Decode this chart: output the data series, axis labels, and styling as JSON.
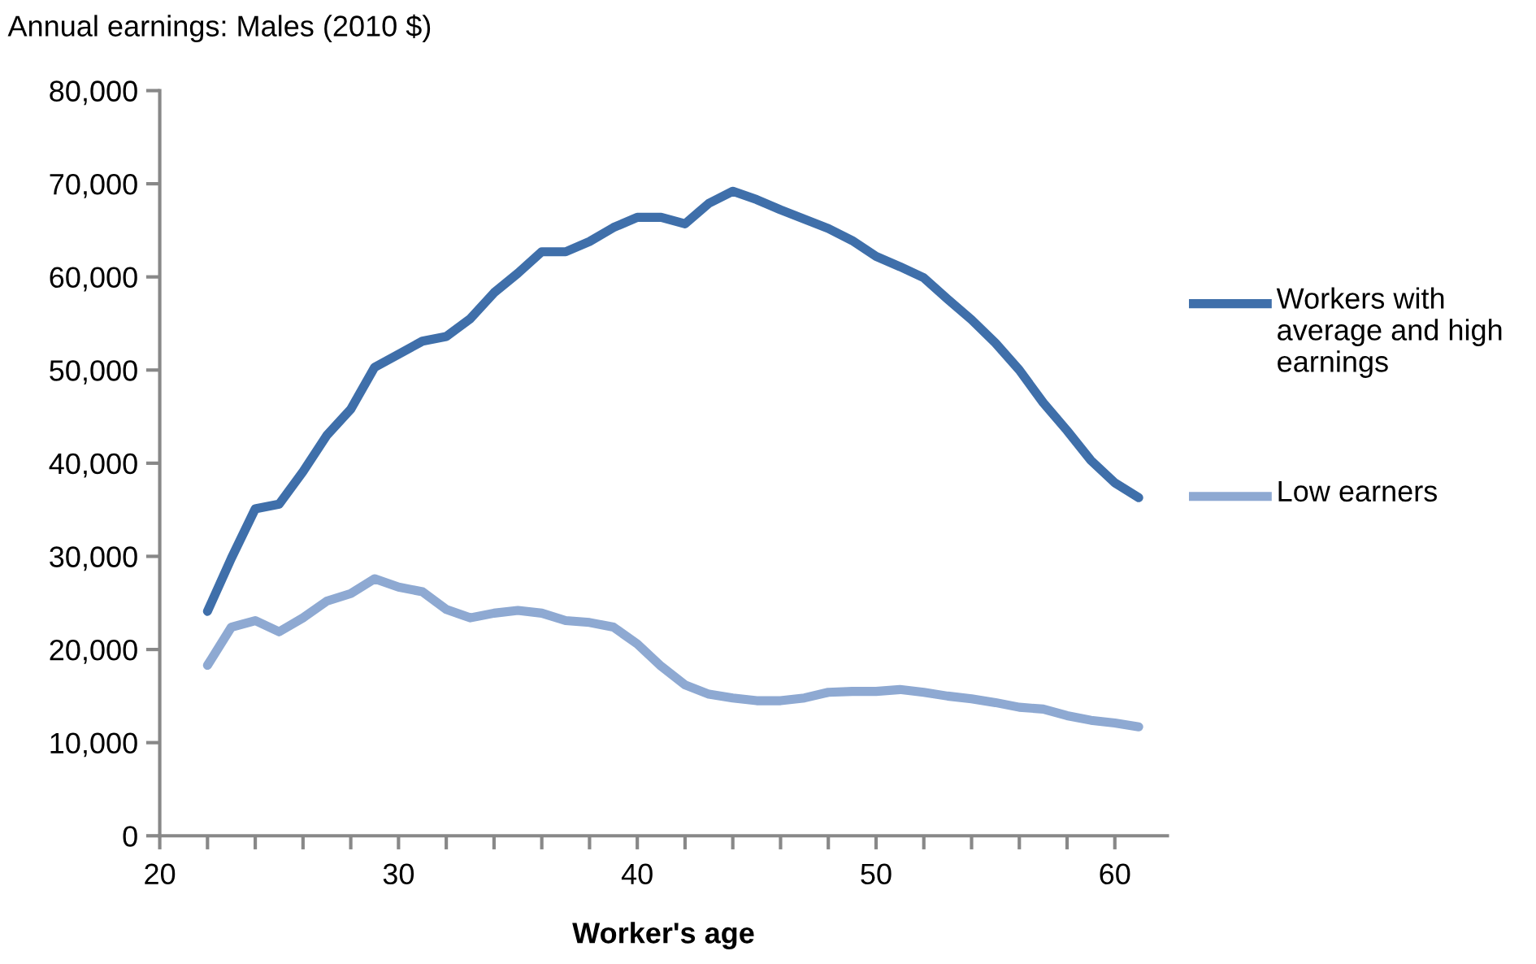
{
  "chart_data": {
    "type": "line",
    "title": "Annual earnings: Males (2010 $)",
    "xlabel": "Worker's age",
    "x": [
      22,
      23,
      24,
      25,
      26,
      27,
      28,
      29,
      30,
      31,
      32,
      33,
      34,
      35,
      36,
      37,
      38,
      39,
      40,
      41,
      42,
      43,
      44,
      45,
      46,
      47,
      48,
      49,
      50,
      51,
      52,
      53,
      54,
      55,
      56,
      57,
      58,
      59,
      60,
      61
    ],
    "series": [
      {
        "name": "Workers with average and high earnings",
        "color": "#3f6faa",
        "values": [
          24100,
          29800,
          35100,
          35600,
          39100,
          43000,
          45800,
          50300,
          51700,
          53100,
          53600,
          55500,
          58300,
          60400,
          62700,
          62700,
          63800,
          65300,
          66400,
          66400,
          65700,
          67900,
          69200,
          68300,
          67200,
          66200,
          65200,
          63900,
          62200,
          61100,
          59900,
          57600,
          55400,
          52900,
          50000,
          46500,
          43500,
          40300,
          37900,
          36300
        ]
      },
      {
        "name": "Low earners",
        "color": "#8ea9d2",
        "values": [
          18300,
          22400,
          23100,
          21900,
          23400,
          25200,
          26000,
          27600,
          26700,
          26200,
          24300,
          23400,
          23900,
          24200,
          23900,
          23100,
          22900,
          22400,
          20600,
          18200,
          16200,
          15200,
          14800,
          14500,
          14500,
          14800,
          15400,
          15500,
          15500,
          15700,
          15400,
          15000,
          14700,
          14300,
          13800,
          13600,
          12900,
          12400,
          12100,
          11700
        ]
      }
    ],
    "xlim": [
      20,
      62.2
    ],
    "xticks": [
      20,
      {
        "value": 22,
        "label": null
      },
      {
        "value": 24,
        "label": null
      },
      {
        "value": 26,
        "label": null
      },
      {
        "value": 28,
        "label": null
      },
      30,
      {
        "value": 32,
        "label": null
      },
      {
        "value": 34,
        "label": null
      },
      {
        "value": 36,
        "label": null
      },
      {
        "value": 38,
        "label": null
      },
      40,
      {
        "value": 42,
        "label": null
      },
      {
        "value": 44,
        "label": null
      },
      {
        "value": 46,
        "label": null
      },
      {
        "value": 48,
        "label": null
      },
      50,
      {
        "value": 52,
        "label": null
      },
      {
        "value": 54,
        "label": null
      },
      {
        "value": 56,
        "label": null
      },
      {
        "value": 58,
        "label": null
      },
      60
    ],
    "ylim": [
      0,
      80000
    ],
    "yticks": [
      0,
      {
        "value": 10000,
        "label": "10,000"
      },
      {
        "value": 20000,
        "label": "20,000"
      },
      {
        "value": 30000,
        "label": "30,000"
      },
      {
        "value": 40000,
        "label": "40,000"
      },
      {
        "value": 50000,
        "label": "50,000"
      },
      {
        "value": 60000,
        "label": "60,000"
      },
      {
        "value": 70000,
        "label": "70,000"
      },
      {
        "value": 80000,
        "label": "80,000"
      }
    ],
    "grid": false,
    "legend": "right",
    "marker": "none",
    "line_style": "solid"
  }
}
